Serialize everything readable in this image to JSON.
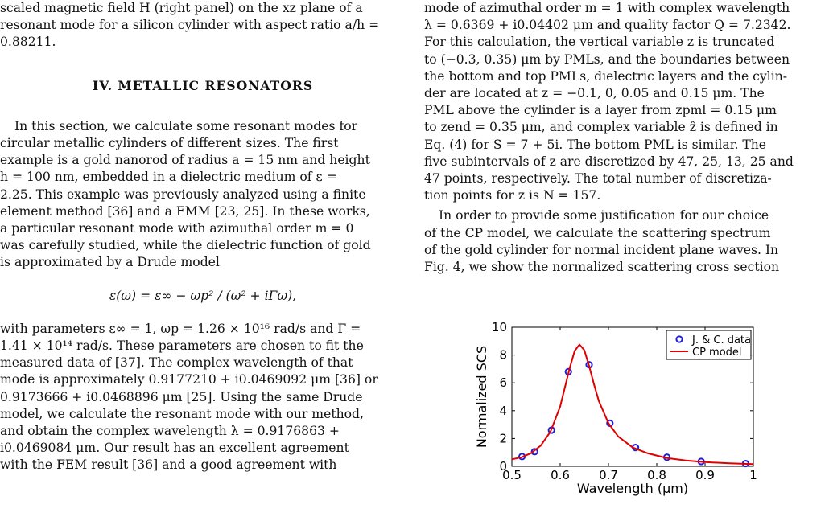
{
  "left_column": {
    "caption_tail": [
      "scaled magnetic field H (right panel) on the xz plane of a",
      "resonant mode for a silicon cylinder with aspect ratio a/h =",
      "0.88211."
    ],
    "section_heading": "IV.   METALLIC RESONATORS",
    "para1": [
      "In this section, we calculate some resonant modes for",
      "circular metallic cylinders of different sizes.  The first",
      "example is a gold nanorod of radius a = 15 nm and height",
      "h = 100 nm, embedded in a dielectric medium of ε =",
      "2.25. This example was previously analyzed using a finite",
      "element method [36] and a FMM [23, 25]. In these works,",
      "a particular resonant mode with azimuthal order m = 0",
      "was carefully studied, while the dielectric function of gold",
      "is approximated by a Drude model"
    ],
    "equation": "ε(ω) = ε∞ − ωp² / (ω² + iΓω),",
    "para2": [
      "with parameters ε∞ = 1, ωp = 1.26 × 10¹⁶ rad/s and Γ =",
      "1.41 × 10¹⁴ rad/s. These parameters are chosen to fit the",
      "measured data of [37]. The complex wavelength of that",
      "mode is approximately 0.9177210 + i0.0469092 μm [36] or",
      "0.9173666 + i0.0468896 μm [25].  Using the same Drude",
      "model, we calculate the resonant mode with our method,",
      "and obtain the complex wavelength λ = 0.9176863 +",
      "i0.0469084 μm.  Our result has an excellent agreement",
      "with the FEM result [36] and a good agreement with"
    ]
  },
  "right_column": {
    "para1": [
      "mode of azimuthal order m = 1 with complex wavelength",
      "λ = 0.6369 + i0.04402 μm and quality factor Q = 7.2342.",
      "For this calculation, the vertical variable z is truncated",
      "to (−0.3, 0.35) μm by PMLs, and the boundaries between",
      "the bottom and top PMLs, dielectric layers and the cylin-",
      "der are located at z = −0.1, 0, 0.05 and 0.15 μm.  The",
      "PML above the cylinder is a layer from zpml = 0.15 μm",
      "to zend = 0.35 μm, and complex variable ẑ is defined in",
      "Eq. (4) for S = 7 + 5i. The bottom PML is similar. The",
      "five subintervals of z are discretized by 47, 25, 13, 25 and",
      "47 points, respectively. The total number of discretiza-",
      "tion points for z is N = 157."
    ],
    "para2": [
      "In order to provide some justification for our choice",
      "of the CP model, we calculate the scattering spectrum",
      "of the gold cylinder for normal incident plane waves.  In",
      "Fig. 4, we show the normalized scattering cross section"
    ]
  },
  "chart_data": {
    "type": "line",
    "xlabel": "Wavelength (μm)",
    "ylabel": "Normalized SCS",
    "xlim": [
      0.5,
      1.0
    ],
    "ylim": [
      0,
      10
    ],
    "xticks": [
      0.5,
      0.6,
      0.7,
      0.8,
      0.9,
      1.0
    ],
    "xtick_labels": [
      "0.5",
      "0.6",
      "0.7",
      "0.8",
      "0.9",
      "1"
    ],
    "yticks": [
      0,
      2,
      4,
      6,
      8,
      10
    ],
    "ytick_labels": [
      "0",
      "2",
      "4",
      "6",
      "8",
      "10"
    ],
    "legend_position": "top-right",
    "series": [
      {
        "name": "J. & C. data",
        "kind": "scatter",
        "color": "#1f1fd0",
        "x": [
          0.521,
          0.547,
          0.582,
          0.617,
          0.66,
          0.703,
          0.756,
          0.821,
          0.892,
          0.984
        ],
        "y": [
          0.7,
          1.05,
          2.6,
          6.8,
          7.3,
          3.1,
          1.35,
          0.65,
          0.35,
          0.2
        ]
      },
      {
        "name": "CP model",
        "kind": "line",
        "color": "#e00000",
        "x": [
          0.5,
          0.52,
          0.54,
          0.56,
          0.58,
          0.6,
          0.61,
          0.62,
          0.63,
          0.64,
          0.65,
          0.66,
          0.67,
          0.68,
          0.7,
          0.72,
          0.75,
          0.78,
          0.82,
          0.86,
          0.9,
          0.95,
          1.0
        ],
        "y": [
          0.5,
          0.65,
          0.95,
          1.5,
          2.5,
          4.3,
          5.7,
          7.1,
          8.3,
          8.75,
          8.35,
          7.2,
          5.9,
          4.7,
          3.1,
          2.15,
          1.35,
          0.95,
          0.6,
          0.42,
          0.3,
          0.22,
          0.16
        ]
      }
    ]
  }
}
